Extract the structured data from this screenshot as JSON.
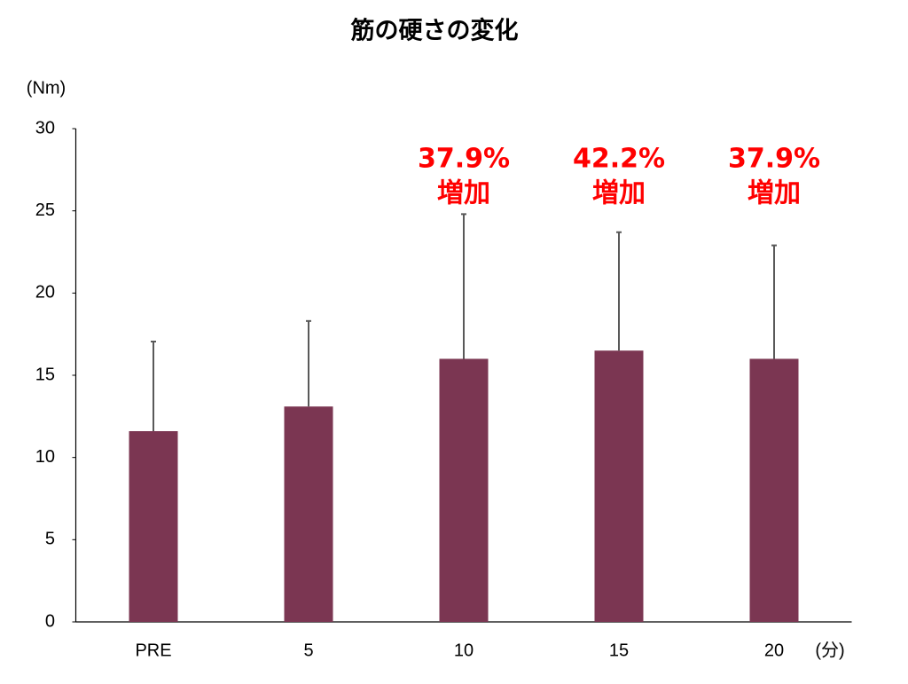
{
  "chart_data": {
    "type": "bar",
    "title": "筋の硬さの変化",
    "y_label": "(Nm)",
    "x_label": "(分)",
    "categories": [
      "PRE",
      "5",
      "10",
      "15",
      "20"
    ],
    "values": [
      11.6,
      13.1,
      16.0,
      16.5,
      16.0
    ],
    "errors": [
      5.45,
      5.2,
      8.8,
      7.2,
      6.9
    ],
    "color": "#7b3652",
    "error_color": "#595959",
    "ylim": [
      0,
      30
    ],
    "yticks": [
      0,
      5,
      10,
      15,
      20,
      25,
      30
    ],
    "grid": false,
    "annotations": [
      {
        "category": 2,
        "lines": [
          "37.9%",
          "増加"
        ]
      },
      {
        "category": 3,
        "lines": [
          "42.2%",
          "増加"
        ]
      },
      {
        "category": 4,
        "lines": [
          "37.9%",
          "増加"
        ]
      }
    ],
    "annotation_color": "#ff0000"
  }
}
